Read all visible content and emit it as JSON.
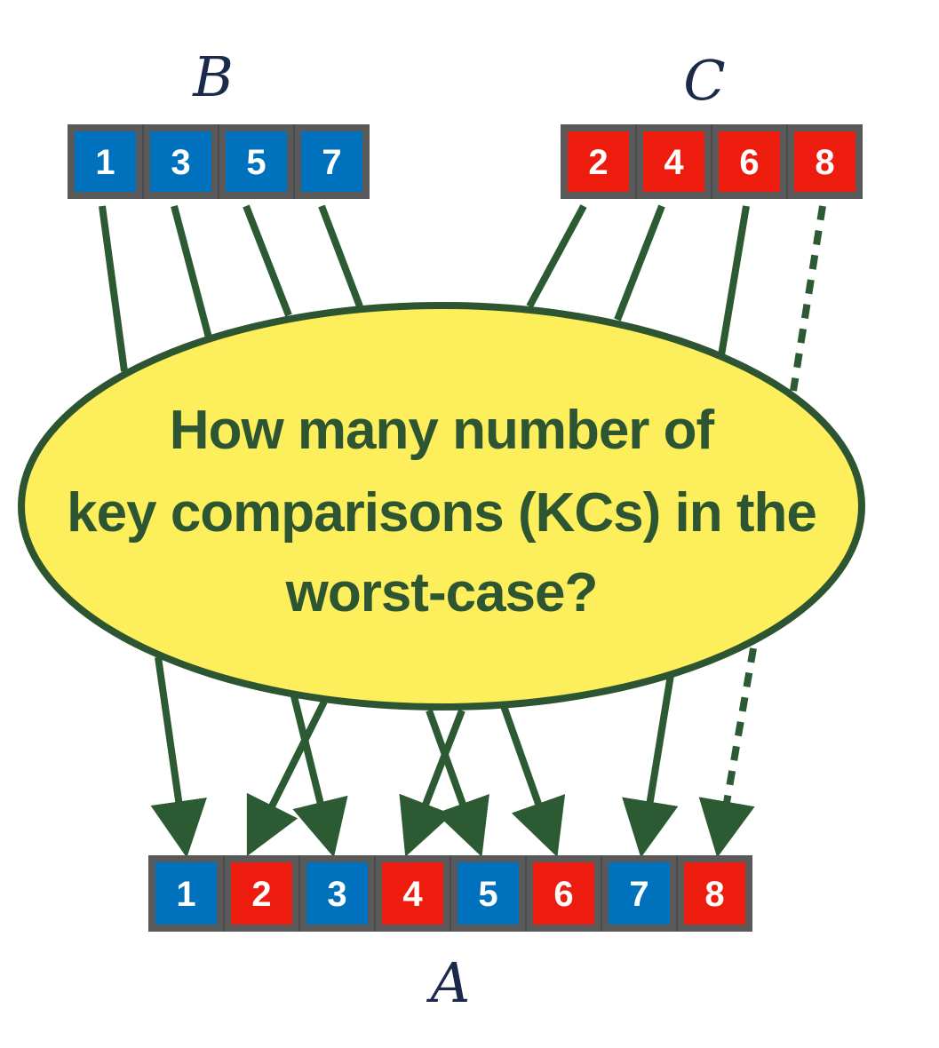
{
  "arrays": {
    "B": {
      "label": "B",
      "values": [
        "1",
        "3",
        "5",
        "7"
      ]
    },
    "C": {
      "label": "C",
      "values": [
        "2",
        "4",
        "6",
        "8"
      ]
    },
    "A": {
      "label": "A",
      "values": [
        "1",
        "2",
        "3",
        "4",
        "5",
        "6",
        "7",
        "8"
      ]
    }
  },
  "colors": {
    "frame": "#595959",
    "blue": "#0071bc",
    "red": "#ee1c0e",
    "arrow": "#2b5a33",
    "ellipse_fill": "#fdef5c",
    "ellipse_stroke": "#2d5532"
  },
  "question": {
    "line1": "How many number of",
    "line2": "key comparisons (KCs) in the",
    "line3": "worst-case?"
  }
}
